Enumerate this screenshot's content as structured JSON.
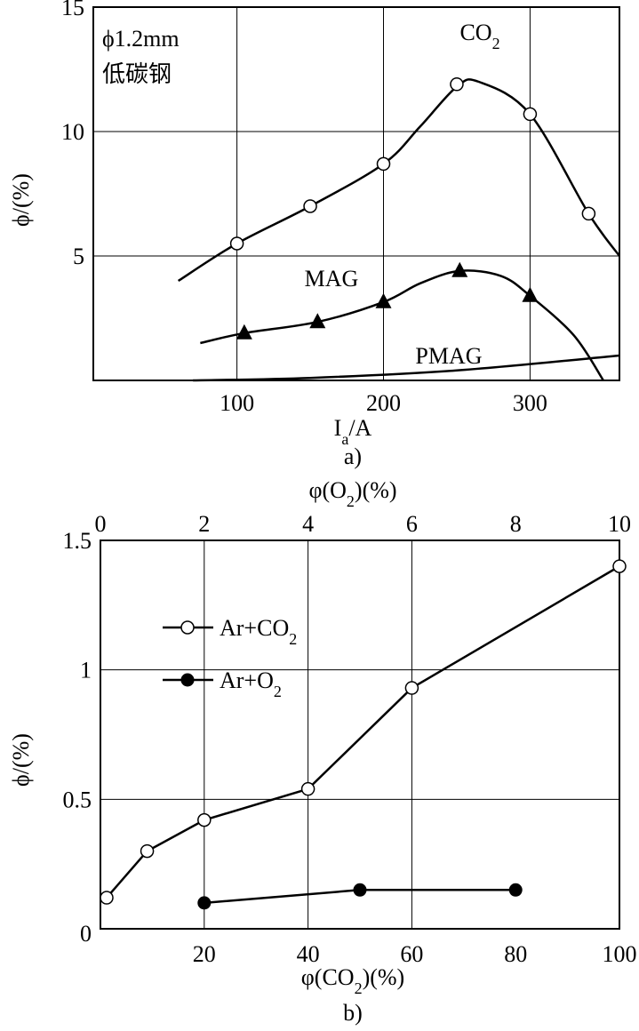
{
  "chart_data": [
    {
      "type": "line",
      "panel_label": "a)",
      "xlabel_main": "I",
      "xlabel_sub": "a",
      "xlabel_unit": "/A",
      "ylabel": "ϕ/(%)",
      "xlim": [
        2,
        361
      ],
      "ylim": [
        0,
        15
      ],
      "xticks": [
        100,
        200,
        300
      ],
      "yticks": [
        5,
        10,
        15
      ],
      "grid": true,
      "annotation": {
        "line1": "ϕ1.2mm",
        "line2": "低碳钢"
      },
      "series": [
        {
          "name": "CO",
          "name_sub": "2",
          "marker": "open-circle",
          "points": [
            [
              100,
              5.5
            ],
            [
              150,
              7.0
            ],
            [
              200,
              8.7
            ],
            [
              250,
              11.9
            ],
            [
              300,
              10.7
            ],
            [
              340,
              6.7
            ]
          ],
          "curve": [
            [
              60,
              4
            ],
            [
              100,
              5.5
            ],
            [
              150,
              7.0
            ],
            [
              200,
              8.7
            ],
            [
              225,
              10.2
            ],
            [
              250,
              11.8
            ],
            [
              265,
              12
            ],
            [
              300,
              10.7
            ],
            [
              340,
              6.7
            ],
            [
              361,
              5
            ]
          ]
        },
        {
          "name": "MAG",
          "name_sub": "",
          "marker": "triangle",
          "points": [
            [
              105,
              1.9
            ],
            [
              155,
              2.35
            ],
            [
              200,
              3.15
            ],
            [
              252,
              4.4
            ],
            [
              300,
              3.4
            ]
          ],
          "curve": [
            [
              75,
              1.5
            ],
            [
              105,
              1.9
            ],
            [
              155,
              2.35
            ],
            [
              200,
              3.15
            ],
            [
              225,
              3.9
            ],
            [
              252,
              4.4
            ],
            [
              280,
              4.2
            ],
            [
              300,
              3.4
            ],
            [
              330,
              1.8
            ],
            [
              350,
              0
            ]
          ]
        },
        {
          "name": "PMAG",
          "name_sub": "",
          "marker": "none",
          "points": [],
          "curve": [
            [
              70,
              0
            ],
            [
              150,
              0.1
            ],
            [
              250,
              0.4
            ],
            [
              361,
              1.0
            ]
          ]
        }
      ]
    },
    {
      "type": "line",
      "panel_label": "b)",
      "xlabel": "φ(CO",
      "xlabel_sub": "2",
      "xlabel_tail": ")(%)",
      "x2label": "φ(O",
      "x2label_sub": "2",
      "x2label_tail": ")(%)",
      "ylabel": "ϕ/(%)",
      "xlim": [
        0,
        100
      ],
      "ylim": [
        0,
        1.5
      ],
      "xticks": [
        20,
        40,
        60,
        80,
        100
      ],
      "x2ticks": [
        0,
        2,
        4,
        6,
        8,
        10
      ],
      "yticks": [
        0,
        0.5,
        1,
        1.5
      ],
      "ytick_labels": [
        "0",
        "0.5",
        "1",
        "1.5"
      ],
      "grid": true,
      "legend": "upper-left",
      "series": [
        {
          "name": "Ar+CO",
          "name_sub": "2",
          "marker": "open-circle",
          "points": [
            [
              1.2,
              0.12
            ],
            [
              9,
              0.3
            ],
            [
              20,
              0.42
            ],
            [
              40,
              0.54
            ],
            [
              60,
              0.93
            ],
            [
              100,
              1.4
            ]
          ]
        },
        {
          "name": "Ar+O",
          "name_sub": "2",
          "marker": "filled-circle",
          "points": [
            [
              20,
              0.1
            ],
            [
              50,
              0.15
            ],
            [
              80,
              0.15
            ]
          ]
        }
      ]
    }
  ]
}
